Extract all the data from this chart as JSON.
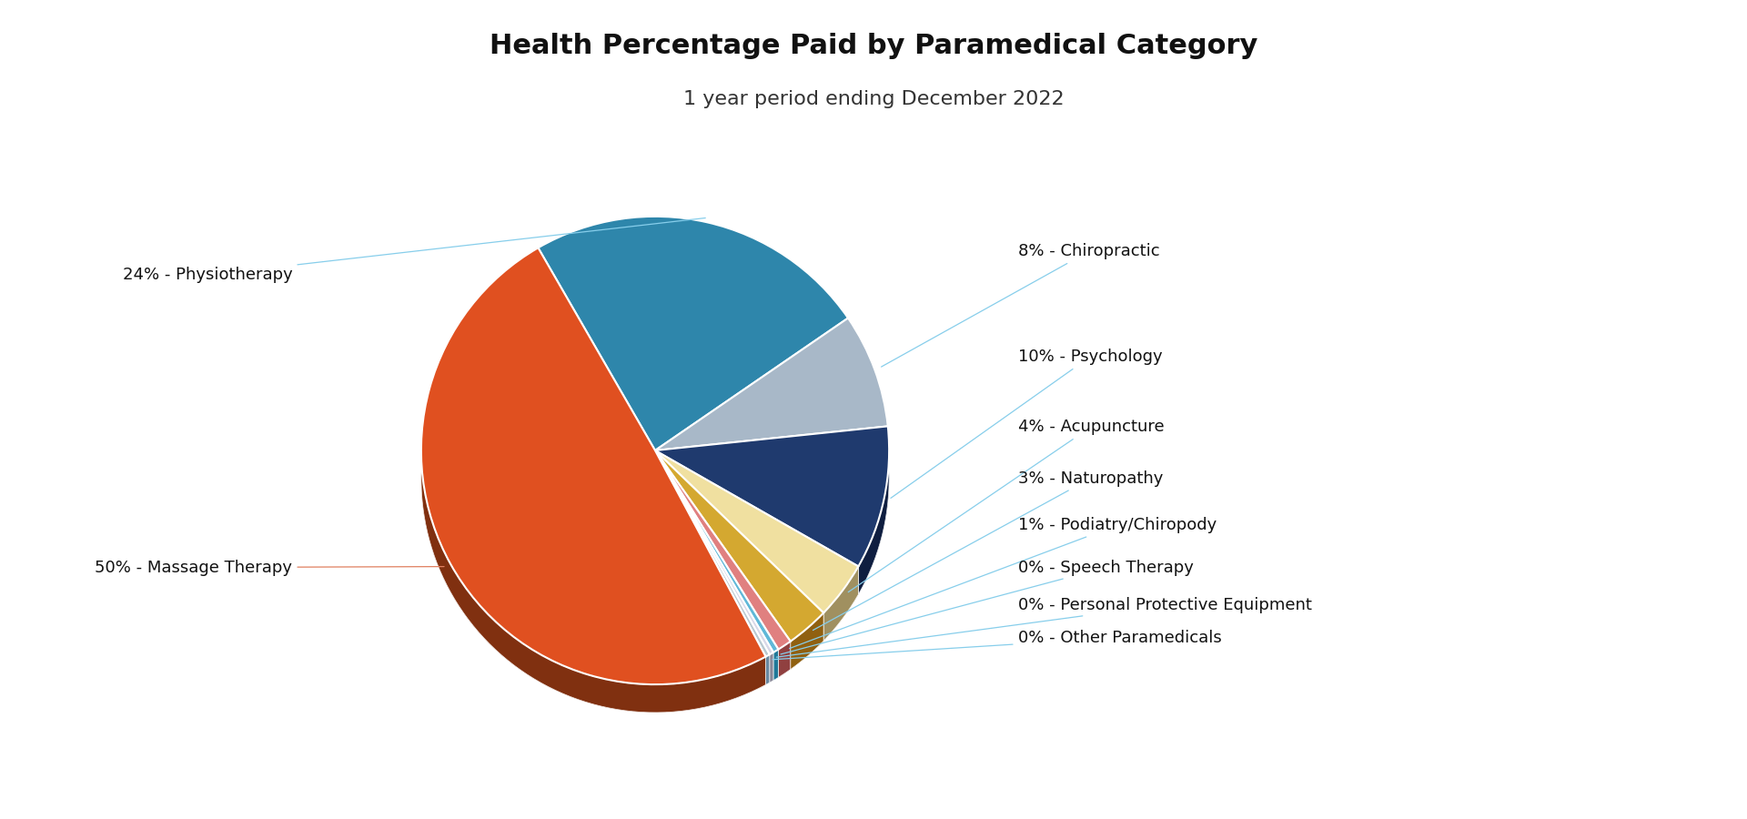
{
  "title": "Health Percentage Paid by Paramedical Category",
  "subtitle": "1 year period ending December 2022",
  "categories": [
    "Physiotherapy",
    "Chiropractic",
    "Psychology",
    "Acupuncture",
    "Naturopathy",
    "Podiatry/Chiropody",
    "Speech Therapy",
    "Personal Protective Equipment",
    "Other Paramedicals",
    "Massage Therapy"
  ],
  "values": [
    24,
    8,
    10,
    4,
    3,
    1,
    0.4,
    0.3,
    0.3,
    50
  ],
  "colors": [
    "#2E86AB",
    "#A8B8C8",
    "#1F3A6E",
    "#F0E0A0",
    "#D4A830",
    "#E08080",
    "#60B8D8",
    "#D8D8E8",
    "#B8C8D0",
    "#E05020"
  ],
  "dark_colors": [
    "#1A5070",
    "#707888",
    "#0F1E40",
    "#A09060",
    "#906010",
    "#904040",
    "#207898",
    "#888898",
    "#6888A0",
    "#803010"
  ],
  "label_percentages": [
    24,
    8,
    10,
    4,
    3,
    1,
    0,
    0,
    0,
    50
  ],
  "line_colors": [
    "#87CEEB",
    "#87CEEB",
    "#87CEEB",
    "#87CEEB",
    "#87CEEB",
    "#87CEEB",
    "#87CEEB",
    "#87CEEB",
    "#87CEEB",
    "#E08060"
  ],
  "background_color": "#ffffff",
  "title_fontsize": 22,
  "subtitle_fontsize": 16,
  "label_fontsize": 13
}
